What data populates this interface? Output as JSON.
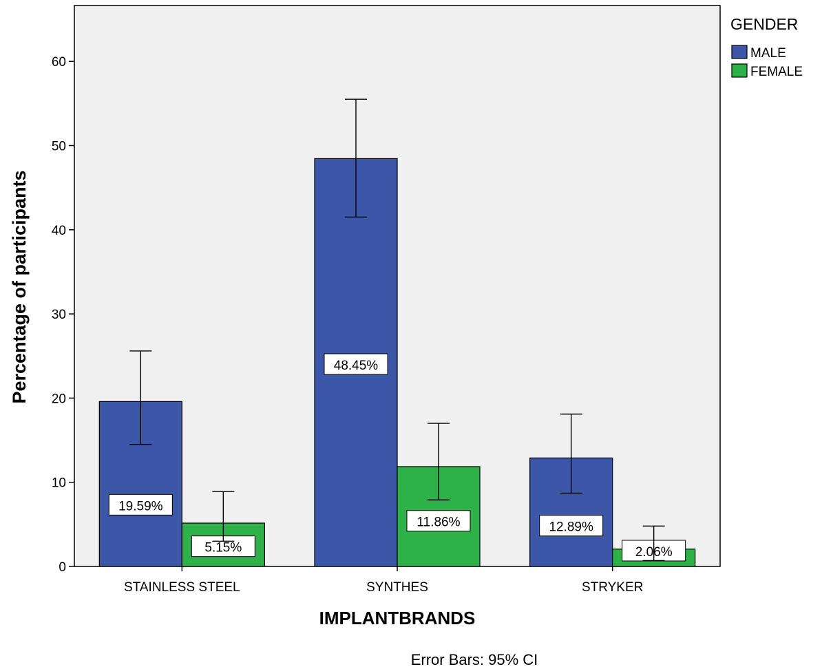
{
  "chart_data": {
    "type": "bar",
    "categories": [
      "STAINLESS STEEL",
      "SYNTHES",
      "STRYKER"
    ],
    "series": [
      {
        "name": "MALE",
        "color": "#3c57a8",
        "values": [
          19.59,
          48.45,
          12.89
        ],
        "ci_low": [
          14.5,
          41.5,
          8.7
        ],
        "ci_high": [
          25.6,
          55.5,
          18.1
        ],
        "labels": [
          "19.59%",
          "48.45%",
          "12.89%"
        ]
      },
      {
        "name": "FEMALE",
        "color": "#2fb14a",
        "values": [
          5.15,
          11.86,
          2.06
        ],
        "ci_low": [
          3.0,
          7.9,
          0.7
        ],
        "ci_high": [
          8.9,
          17.0,
          4.8
        ],
        "labels": [
          "5.15%",
          "11.86%",
          "2.06%"
        ]
      }
    ],
    "ylabel": "Percentage of participants",
    "xlabel": "IMPLANTBRANDS",
    "ylim": [
      0,
      66.5
    ],
    "yticks": [
      0,
      10,
      20,
      30,
      40,
      50,
      60
    ],
    "legend_title": "GENDER",
    "legend_position": "top-right, outside plot",
    "plot_background": "#f0f0f0",
    "grid": false,
    "footnote": "Error Bars: 95% CI"
  }
}
